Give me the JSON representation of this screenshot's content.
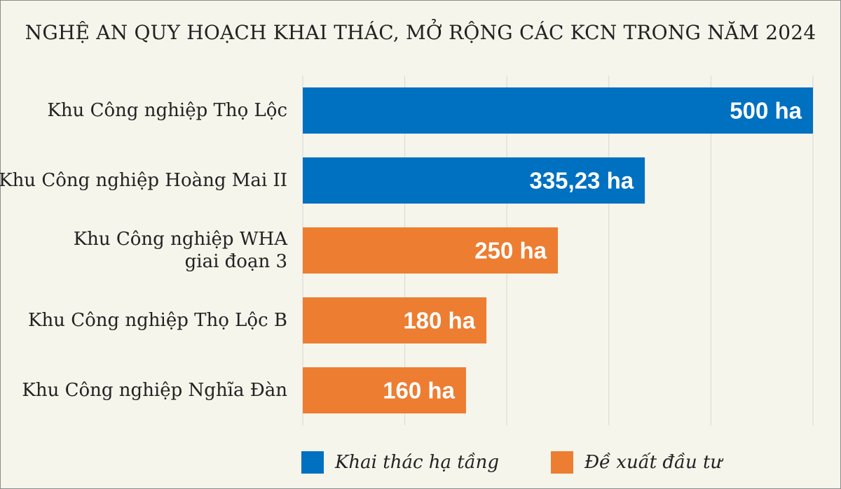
{
  "chart_data": {
    "type": "bar",
    "orientation": "horizontal",
    "title": "NGHỆ AN QUY HOẠCH KHAI THÁC, MỞ RỘNG CÁC KCN TRONG NĂM 2024",
    "categories": [
      [
        "Khu Công nghiệp Thọ Lộc"
      ],
      [
        "Khu Công nghiệp Hoàng Mai II"
      ],
      [
        "Khu Công nghiệp WHA",
        "giai đoạn 3"
      ],
      [
        "Khu Công nghiệp Thọ Lộc B"
      ],
      [
        "Khu Công nghiệp Nghĩa Đàn"
      ]
    ],
    "values": [
      500,
      335.23,
      250,
      180,
      160
    ],
    "value_labels": [
      "500 ha",
      "335,23 ha",
      "250 ha",
      "180 ha",
      "160 ha"
    ],
    "series_index": [
      0,
      0,
      1,
      1,
      1
    ],
    "series": [
      {
        "name": "Khai thác hạ tầng",
        "color": "#0070c0"
      },
      {
        "name": "Đề xuất đầu tư",
        "color": "#ed7d31"
      }
    ],
    "xlim": [
      0,
      500
    ],
    "grid": true,
    "legend_position": "bottom"
  }
}
